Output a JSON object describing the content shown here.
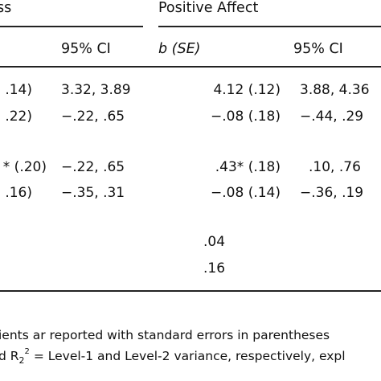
{
  "header": {
    "left_group_fragment": "ss",
    "right_group": "Positive Affect"
  },
  "subheader": {
    "left_ci": "95% CI",
    "b_se": "b (SE)",
    "right_ci": "95% CI"
  },
  "rows": [
    {
      "left_b": ".14)",
      "left_ci": "3.32, 3.89",
      "right_b": "4.12 (.12)",
      "right_ci": "3.88, 4.36"
    },
    {
      "left_b": ".22)",
      "left_ci": "−.22, .65",
      "right_b": "−.08 (.18)",
      "right_ci": "−.44, .29"
    },
    {
      "left_b": "* (.20)",
      "left_ci": "−.22, .65",
      "right_b": ".43* (.18)",
      "right_ci": ".10, .76"
    },
    {
      "left_b": ".16)",
      "left_ci": "−.35, .31",
      "right_b": "−.08 (.14)",
      "right_ci": "−.36, .19"
    }
  ],
  "variance": {
    "level1": ".04",
    "level2": ".16"
  },
  "notes": {
    "line1": "ients ar reported with standard errors in parentheses",
    "line2_prefix": "d R",
    "line2_sub": "2",
    "line2_sup": "2",
    "line2_rest": " = Level-1 and Level-2 variance, respectively, expl"
  }
}
